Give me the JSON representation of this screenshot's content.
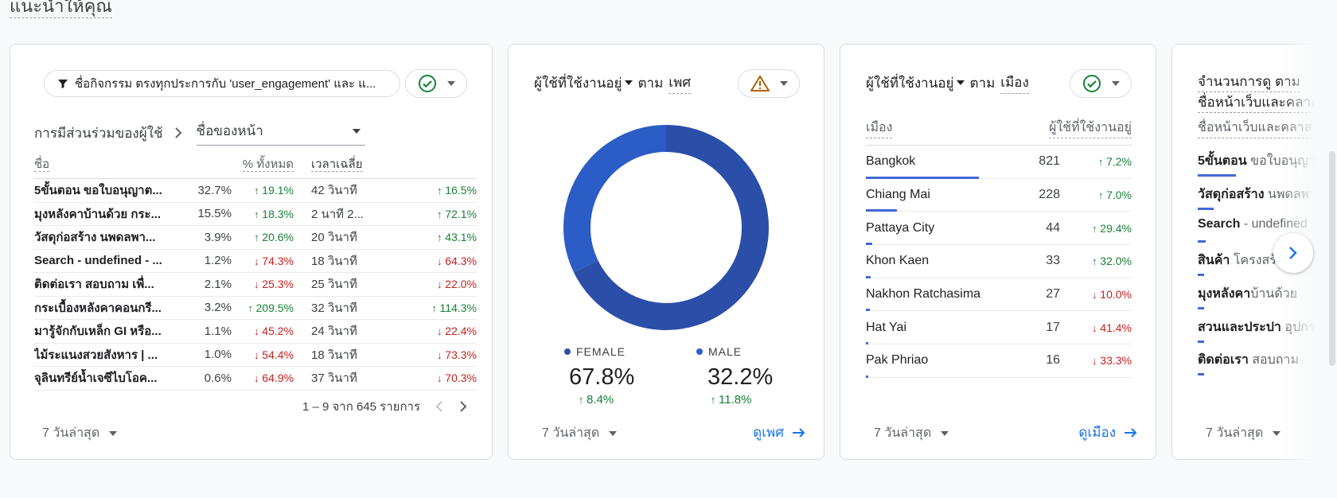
{
  "section_title": "แนะนำให้คุณ",
  "card1": {
    "filter_text": "ชื่อกิจกรรม ตรงทุกประการกับ 'user_engagement' และ แ...",
    "crumb_first": "การมีส่วนร่วมของผู้ใช้",
    "crumb_select": "ชื่อของหน้า",
    "headers": {
      "name": "ชื่อ",
      "pct": "% ทั้งหมด",
      "time": "เวลาเฉลี่ย"
    },
    "rows": [
      {
        "name": "5ขั้นตอน ขอใบอนุญาต...",
        "pct": "32.7%",
        "pct_change": "19.1%",
        "pct_dir": "up",
        "time": "42 วินาที",
        "time_change": "16.5%",
        "time_dir": "up"
      },
      {
        "name": "มุงหลังคาบ้านด้วย กระ...",
        "pct": "15.5%",
        "pct_change": "18.3%",
        "pct_dir": "up",
        "time": "2 นาที 2...",
        "time_change": "72.1%",
        "time_dir": "up"
      },
      {
        "name": "วัสดุก่อสร้าง นพดลพา...",
        "pct": "3.9%",
        "pct_change": "20.6%",
        "pct_dir": "up",
        "time": "20 วินาที",
        "time_change": "43.1%",
        "time_dir": "up"
      },
      {
        "name": "Search - undefined - ...",
        "pct": "1.2%",
        "pct_change": "74.3%",
        "pct_dir": "down",
        "time": "18 วินาที",
        "time_change": "64.3%",
        "time_dir": "down"
      },
      {
        "name": "ติดต่อเรา สอบถาม เพื่...",
        "pct": "2.1%",
        "pct_change": "25.3%",
        "pct_dir": "down",
        "time": "25 วินาที",
        "time_change": "22.0%",
        "time_dir": "down"
      },
      {
        "name": "กระเบื้องหลังคาคอนกรี...",
        "pct": "3.2%",
        "pct_change": "209.5%",
        "pct_dir": "up",
        "time": "32 วินาที",
        "time_change": "114.3%",
        "time_dir": "up"
      },
      {
        "name": "มารู้จักกับเหล็ก GI หรือ...",
        "pct": "1.1%",
        "pct_change": "45.2%",
        "pct_dir": "down",
        "time": "24 วินาที",
        "time_change": "22.4%",
        "time_dir": "down"
      },
      {
        "name": "ไม้ระแนงสวยสังหาร | ...",
        "pct": "1.0%",
        "pct_change": "54.4%",
        "pct_dir": "down",
        "time": "18 วินาที",
        "time_change": "73.3%",
        "time_dir": "down"
      },
      {
        "name": "จุลินทรีย์น้ำเจซีไบโอค...",
        "pct": "0.6%",
        "pct_change": "64.9%",
        "pct_dir": "down",
        "time": "37 วินาที",
        "time_change": "70.3%",
        "time_dir": "down"
      }
    ],
    "pagination": "1 – 9 จาก 645 รายการ",
    "date_range": "7 วันล่าสุด"
  },
  "card2": {
    "metric": "ผู้ใช้ที่ใช้งานอยู่",
    "by": "ตาม",
    "dimension": "เพศ",
    "female_label": "FEMALE",
    "female_pct": "67.8%",
    "female_change": "8.4%",
    "male_label": "MALE",
    "male_pct": "32.2%",
    "male_change": "11.8%",
    "donut": {
      "female": 67.8,
      "male": 32.2
    },
    "date_range": "7 วันล่าสุด",
    "link": "ดูเพศ",
    "colors": {
      "female": "#2b4ea8",
      "male": "#2c5cc5"
    }
  },
  "card3": {
    "metric": "ผู้ใช้ที่ใช้งานอยู่",
    "by": "ตาม",
    "dimension": "เมือง",
    "col_city": "เมือง",
    "col_users": "ผู้ใช้ที่ใช้งานอยู่",
    "rows": [
      {
        "city": "Bangkok",
        "value": 821,
        "change": "7.2%",
        "dir": "up"
      },
      {
        "city": "Chiang Mai",
        "value": 228,
        "change": "7.0%",
        "dir": "up"
      },
      {
        "city": "Pattaya City",
        "value": 44,
        "change": "29.4%",
        "dir": "up"
      },
      {
        "city": "Khon Kaen",
        "value": 33,
        "change": "32.0%",
        "dir": "up"
      },
      {
        "city": "Nakhon Ratchasima",
        "value": 27,
        "change": "10.0%",
        "dir": "down"
      },
      {
        "city": "Hat Yai",
        "value": 17,
        "change": "41.4%",
        "dir": "down"
      },
      {
        "city": "Pak Phriao",
        "value": 16,
        "change": "33.3%",
        "dir": "down"
      }
    ],
    "date_range": "7 วันล่าสุด",
    "link": "ดูเมือง"
  },
  "card4": {
    "title_line1": "จำนวนการดู ตาม",
    "title_line2": "ชื่อหน้าเว็บและคลาส",
    "col_header": "ชื่อหน้าเว็บและคลาส",
    "rows": [
      {
        "bold": "5ขั้นตอน",
        "rest": " ขอใบอนุญาต",
        "share": 0.48
      },
      {
        "bold": "วัสดุก่อสร้าง",
        "rest": " นพดลพานิช",
        "share": 0.2
      },
      {
        "bold": "Search",
        "rest": " - undefined",
        "share": 0.1
      },
      {
        "bold": "สินค้า",
        "rest": " โครงสร้าง",
        "share": 0.08
      },
      {
        "bold": "มุงหลังคา",
        "rest": "บ้านด้วย",
        "share": 0.06
      },
      {
        "bold": "สวนและประปา",
        "rest": " อุปกรณ์",
        "share": 0.05
      },
      {
        "bold": "ติดต่อเรา",
        "rest": " สอบถาม",
        "share": 0.05
      }
    ],
    "date_range": "7 วันล่าสุด"
  }
}
